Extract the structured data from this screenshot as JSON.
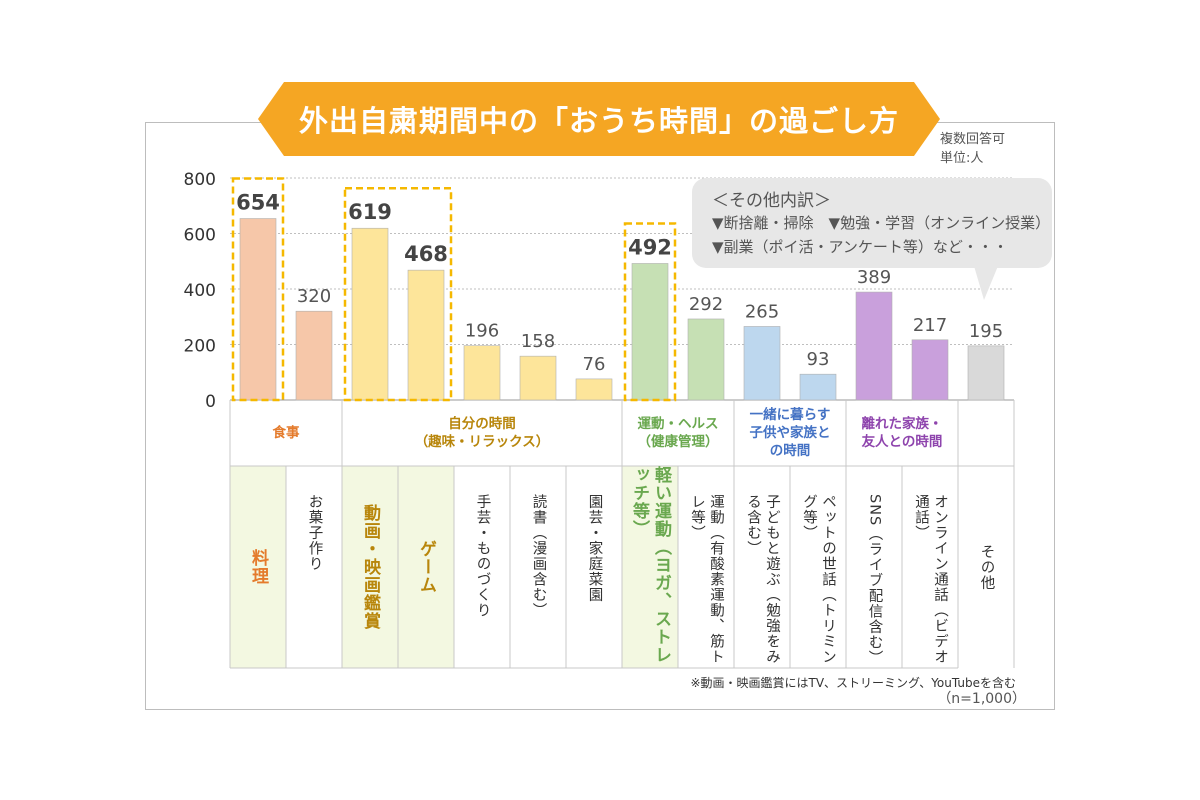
{
  "title": "外出自粛期間中の「おうち時間」の過ごし方",
  "notes": {
    "multiple": "複数回答可",
    "unit": "単位:人"
  },
  "callout": {
    "title": "＜その他内訳＞",
    "line1": "▼断捨離・掃除　▼勉強・学習（オンライン授業）",
    "line2": "▼副業（ポイ活・アンケート等）など・・・"
  },
  "footnote": "※動画・映画鑑賞にはTV、ストリーミング、YouTubeを含む",
  "sample": "（n=1,000）",
  "colors": {
    "banner": "#f5a623",
    "highlight": "#f5b800",
    "meal": "#f6c7a9",
    "self": "#fde59a",
    "health": "#c6e0b4",
    "family": "#bdd7ee",
    "friends": "#c9a0dc",
    "other": "#d9d9d9",
    "meal_text": "#e47b2c",
    "self_text": "#b8860b",
    "health_text": "#6aa84f",
    "family_text": "#4472c4",
    "friends_text": "#8e44ad"
  },
  "chart_data": {
    "type": "bar",
    "ylim": [
      0,
      800
    ],
    "yticks": [
      "0",
      "200",
      "400",
      "600",
      "800"
    ],
    "groups": [
      {
        "name": "食事",
        "color": "meal"
      },
      {
        "name": "自分の時間\n（趣味・リラックス）",
        "color": "self"
      },
      {
        "name": "運動・ヘルス\n（健康管理）",
        "color": "health"
      },
      {
        "name": "一緒に暮らす\n子供や家族と\nの時間",
        "color": "family"
      },
      {
        "name": "離れた家族・\n友人との時間",
        "color": "friends"
      },
      {
        "name": "",
        "color": "other"
      }
    ],
    "categories": [
      "料理",
      "お菓子作り",
      "動画・映画鑑賞",
      "ゲーム",
      "手芸・ものづくり",
      "読書（漫画含む）",
      "園芸・家庭菜園",
      "軽い運動（ヨガ、ストレッチ等）",
      "運動（有酸素運動、筋トレ等）",
      "子どもと遊ぶ（勉強をみる含む）",
      "ペットの世話（トリミング等）",
      "SNS（ライブ配信含む）",
      "オンライン通話（ビデオ通話）",
      "その他"
    ],
    "values": [
      654,
      320,
      619,
      468,
      196,
      158,
      76,
      492,
      292,
      265,
      93,
      389,
      217,
      195
    ],
    "bar_groups": [
      0,
      0,
      1,
      1,
      1,
      1,
      1,
      2,
      2,
      3,
      3,
      4,
      4,
      5
    ],
    "highlighted": [
      0,
      2,
      3,
      7
    ]
  }
}
